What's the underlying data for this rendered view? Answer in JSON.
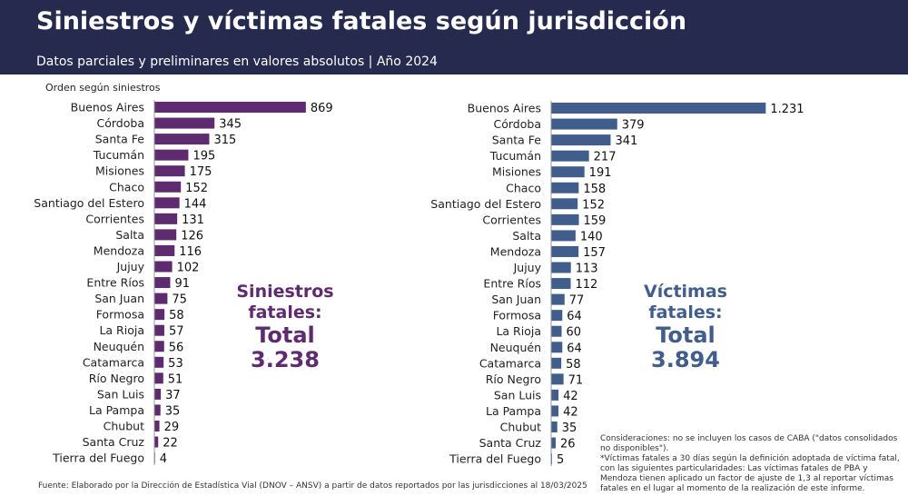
{
  "header": {
    "title": "Siniestros y víctimas fatales según jurisdicción",
    "subtitle": "Datos parciales y preliminares en valores absolutos | Año 2024"
  },
  "order_note": "Orden según siniestros",
  "totals": {
    "siniestros": {
      "line1": "Siniestros",
      "line2": "fatales:",
      "line3": "Total",
      "value": "3.238"
    },
    "victimas": {
      "line1": "Víctimas",
      "line2": "fatales:",
      "line3": "Total",
      "value": "3.894"
    }
  },
  "notes": {
    "line1": "Consideraciones: no se incluyen los casos de CABA (\"datos consolidados no disponibles\").",
    "line2": "*Víctimas fatales a 30 días según la definición adoptada de víctima fatal, con las siguientes particularidades: Las víctimas fatales de PBA y Mendoza tienen aplicado un factor de ajuste de 1,3 al reportar víctimas fatales en el lugar al momento de la realización de este informe."
  },
  "source": "Fuente: Elaborado por la Dirección de Estadística Vial (DNOV – ANSV) a partir de datos reportados por las jurisdicciones al 18/03/2025",
  "colors": {
    "header": "#252a4e",
    "siniestros": "#5e2a70",
    "victimas": "#405d8c"
  },
  "chart_data": [
    {
      "type": "bar",
      "orientation": "horizontal",
      "name": "siniestros",
      "categories": [
        "Buenos Aires",
        "Córdoba",
        "Santa Fe",
        "Tucumán",
        "Misiones",
        "Chaco",
        "Santiago del Estero",
        "Corrientes",
        "Salta",
        "Mendoza",
        "Jujuy",
        "Entre Ríos",
        "San Juan",
        "Formosa",
        "La Rioja",
        "Neuquén",
        "Catamarca",
        "Río Negro",
        "San Luis",
        "La Pampa",
        "Chubut",
        "Santa Cruz",
        "Tierra del Fuego"
      ],
      "values": [
        869,
        345,
        315,
        195,
        175,
        152,
        144,
        131,
        126,
        116,
        102,
        91,
        75,
        58,
        57,
        56,
        53,
        51,
        37,
        35,
        29,
        22,
        4
      ],
      "value_labels": [
        "869",
        "345",
        "315",
        "195",
        "175",
        "152",
        "144",
        "131",
        "126",
        "116",
        "102",
        "91",
        "75",
        "58",
        "57",
        "56",
        "53",
        "51",
        "37",
        "35",
        "29",
        "22",
        "4"
      ]
    },
    {
      "type": "bar",
      "orientation": "horizontal",
      "name": "victimas",
      "categories": [
        "Buenos Aires",
        "Córdoba",
        "Santa Fe",
        "Tucumán",
        "Misiones",
        "Chaco",
        "Santiago del Estero",
        "Corrientes",
        "Salta",
        "Mendoza",
        "Jujuy",
        "Entre Ríos",
        "San Juan",
        "Formosa",
        "La Rioja",
        "Neuquén",
        "Catamarca",
        "Río Negro",
        "San Luis",
        "La Pampa",
        "Chubut",
        "Santa Cruz",
        "Tierra del Fuego"
      ],
      "values": [
        1231,
        379,
        341,
        217,
        191,
        158,
        152,
        159,
        140,
        157,
        113,
        112,
        77,
        64,
        60,
        64,
        58,
        71,
        42,
        42,
        35,
        26,
        5
      ],
      "value_labels": [
        "1.231",
        "379",
        "341",
        "217",
        "191",
        "158",
        "152",
        "159",
        "140",
        "157",
        "113",
        "112",
        "77",
        "64",
        "60",
        "64",
        "58",
        "71",
        "42",
        "42",
        "35",
        "26",
        "5"
      ]
    }
  ]
}
